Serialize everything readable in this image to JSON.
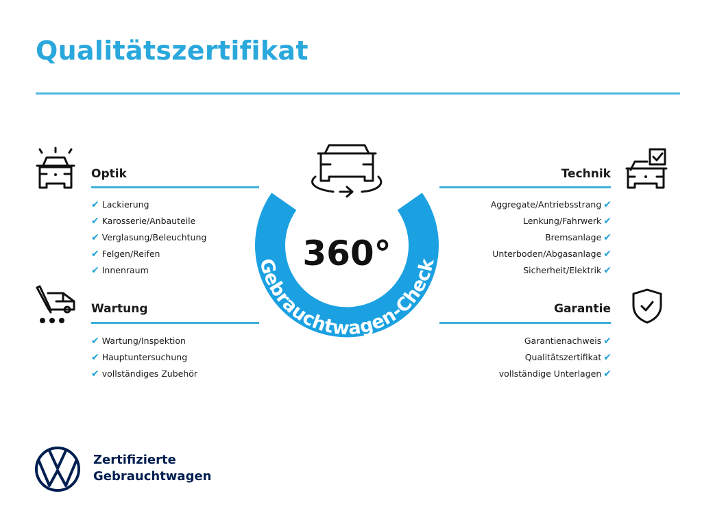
{
  "title": "Qualitätszertifikat",
  "center": {
    "degrees": "360°",
    "ring_text": "Gebrauchtwagen-Check",
    "ring_color": "#1ba1e2",
    "icon": "car-rotate-icon"
  },
  "sections": {
    "optik": {
      "heading": "Optik",
      "icon": "car-lights-icon",
      "items": [
        "Lackierung",
        "Karosserie/Anbauteile",
        "Verglasung/Beleuchtung",
        "Felgen/Reifen",
        "Innenraum"
      ]
    },
    "wartung": {
      "heading": "Wartung",
      "icon": "service-van-icon",
      "items": [
        "Wartung/Inspektion",
        "Hauptuntersuchung",
        "vollständiges Zubehör"
      ]
    },
    "technik": {
      "heading": "Technik",
      "icon": "car-checklist-icon",
      "items": [
        "Aggregate/Antriebsstrang",
        "Lenkung/Fahrwerk",
        "Bremsanlage",
        "Unterboden/Abgasanlage",
        "Sicherheit/Elektrik"
      ]
    },
    "garantie": {
      "heading": "Garantie",
      "icon": "shield-check-icon",
      "items": [
        "Garantienachweis",
        "Qualitätszertifikat",
        "vollständige Unterlagen"
      ]
    }
  },
  "check_mark": "✔",
  "footer": {
    "line1": "Zertifizierte",
    "line2": "Gebrauchtwagen",
    "logo": "vw-logo",
    "brand_color": "#001e50"
  },
  "accent_color": "#2aa8dc"
}
